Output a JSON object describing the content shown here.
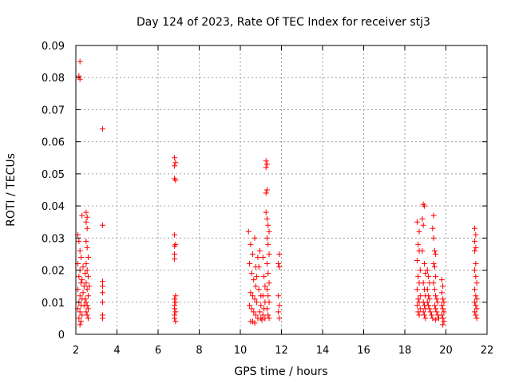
{
  "chart_data": {
    "type": "scatter",
    "title": "Day 124 of 2023, Rate Of TEC Index for receiver stj3",
    "xlabel": "GPS time / hours",
    "ylabel": "ROTI / TECUs",
    "xlim": [
      2,
      22
    ],
    "ylim": [
      0,
      0.09
    ],
    "x_ticks": [
      2,
      4,
      6,
      8,
      10,
      12,
      14,
      16,
      18,
      20,
      22
    ],
    "x_tick_labels": [
      "2",
      "4",
      "6",
      "8",
      "10",
      "12",
      "14",
      "16",
      "18",
      "20",
      "22"
    ],
    "y_ticks": [
      0,
      0.01,
      0.02,
      0.03,
      0.04,
      0.05,
      0.06,
      0.07,
      0.08,
      0.09
    ],
    "y_tick_labels": [
      "0",
      "0.01",
      "0.02",
      "0.03",
      "0.04",
      "0.05",
      "0.06",
      "0.07",
      "0.08",
      "0.09"
    ],
    "grid": true,
    "marker": "+",
    "series": [
      {
        "name": "ROTI",
        "color": "#ff0000",
        "points": [
          [
            2.2,
            0.085
          ],
          [
            2.15,
            0.0805
          ],
          [
            2.2,
            0.0795
          ],
          [
            2.1,
            0.031
          ],
          [
            2.15,
            0.029
          ],
          [
            2.2,
            0.026
          ],
          [
            2.25,
            0.024
          ],
          [
            2.1,
            0.022
          ],
          [
            2.2,
            0.02
          ],
          [
            2.15,
            0.018
          ],
          [
            2.25,
            0.016
          ],
          [
            2.1,
            0.014
          ],
          [
            2.2,
            0.012
          ],
          [
            2.3,
            0.011
          ],
          [
            2.15,
            0.01
          ],
          [
            2.25,
            0.009
          ],
          [
            2.1,
            0.008
          ],
          [
            2.2,
            0.007
          ],
          [
            2.3,
            0.006
          ],
          [
            2.15,
            0.005
          ],
          [
            2.25,
            0.004
          ],
          [
            2.2,
            0.003
          ],
          [
            2.35,
            0.013
          ],
          [
            2.3,
            0.017
          ],
          [
            2.4,
            0.009
          ],
          [
            2.3,
            0.037
          ],
          [
            2.35,
            0.021
          ],
          [
            2.4,
            0.015
          ],
          [
            2.5,
            0.038
          ],
          [
            2.55,
            0.0365
          ],
          [
            2.5,
            0.035
          ],
          [
            2.55,
            0.033
          ],
          [
            2.5,
            0.029
          ],
          [
            2.55,
            0.027
          ],
          [
            2.6,
            0.024
          ],
          [
            2.5,
            0.022
          ],
          [
            2.55,
            0.02
          ],
          [
            2.6,
            0.018
          ],
          [
            2.5,
            0.016
          ],
          [
            2.55,
            0.014
          ],
          [
            2.6,
            0.012
          ],
          [
            2.5,
            0.01
          ],
          [
            2.55,
            0.009
          ],
          [
            2.6,
            0.008
          ],
          [
            2.5,
            0.007
          ],
          [
            2.55,
            0.006
          ],
          [
            2.6,
            0.005
          ],
          [
            2.45,
            0.011
          ],
          [
            2.45,
            0.019
          ],
          [
            2.65,
            0.015
          ],
          [
            3.3,
            0.064
          ],
          [
            3.3,
            0.034
          ],
          [
            3.3,
            0.0165
          ],
          [
            3.3,
            0.015
          ],
          [
            3.3,
            0.013
          ],
          [
            3.3,
            0.01
          ],
          [
            3.3,
            0.006
          ],
          [
            3.3,
            0.005
          ],
          [
            6.8,
            0.055
          ],
          [
            6.85,
            0.0535
          ],
          [
            6.8,
            0.0525
          ],
          [
            6.8,
            0.0485
          ],
          [
            6.85,
            0.048
          ],
          [
            6.8,
            0.031
          ],
          [
            6.85,
            0.028
          ],
          [
            6.8,
            0.0275
          ],
          [
            6.8,
            0.025
          ],
          [
            6.8,
            0.0235
          ],
          [
            6.85,
            0.012
          ],
          [
            6.8,
            0.011
          ],
          [
            6.85,
            0.01
          ],
          [
            6.8,
            0.009
          ],
          [
            6.8,
            0.008
          ],
          [
            6.85,
            0.007
          ],
          [
            6.8,
            0.006
          ],
          [
            6.8,
            0.005
          ],
          [
            6.85,
            0.004
          ],
          [
            10.4,
            0.032
          ],
          [
            10.5,
            0.028
          ],
          [
            10.6,
            0.025
          ],
          [
            10.7,
            0.03
          ],
          [
            10.45,
            0.022
          ],
          [
            10.55,
            0.019
          ],
          [
            10.65,
            0.017
          ],
          [
            10.75,
            0.015
          ],
          [
            10.5,
            0.013
          ],
          [
            10.6,
            0.012
          ],
          [
            10.7,
            0.011
          ],
          [
            10.8,
            0.01
          ],
          [
            10.45,
            0.009
          ],
          [
            10.55,
            0.008
          ],
          [
            10.65,
            0.007
          ],
          [
            10.75,
            0.006
          ],
          [
            10.85,
            0.005
          ],
          [
            10.5,
            0.004
          ],
          [
            10.6,
            0.004
          ],
          [
            10.7,
            0.0035
          ],
          [
            10.9,
            0.021
          ],
          [
            10.95,
            0.026
          ],
          [
            10.8,
            0.018
          ],
          [
            10.9,
            0.014
          ],
          [
            11.0,
            0.012
          ],
          [
            11.0,
            0.009
          ],
          [
            10.95,
            0.007
          ],
          [
            11.0,
            0.005
          ],
          [
            10.85,
            0.024
          ],
          [
            10.75,
            0.021
          ],
          [
            11.1,
            0.024
          ],
          [
            11.15,
            0.018
          ],
          [
            11.2,
            0.015
          ],
          [
            11.1,
            0.012
          ],
          [
            11.2,
            0.01
          ],
          [
            11.15,
            0.008
          ],
          [
            11.1,
            0.006
          ],
          [
            11.2,
            0.005
          ],
          [
            11.05,
            0.0045
          ],
          [
            11.25,
            0.054
          ],
          [
            11.3,
            0.053
          ],
          [
            11.25,
            0.052
          ],
          [
            11.3,
            0.045
          ],
          [
            11.25,
            0.044
          ],
          [
            11.25,
            0.038
          ],
          [
            11.3,
            0.036
          ],
          [
            11.35,
            0.034
          ],
          [
            11.4,
            0.032
          ],
          [
            11.3,
            0.03
          ],
          [
            11.35,
            0.028
          ],
          [
            11.4,
            0.025
          ],
          [
            11.3,
            0.022
          ],
          [
            11.35,
            0.019
          ],
          [
            11.4,
            0.016
          ],
          [
            11.3,
            0.014
          ],
          [
            11.35,
            0.012
          ],
          [
            11.4,
            0.01
          ],
          [
            11.3,
            0.008
          ],
          [
            11.35,
            0.006
          ],
          [
            11.4,
            0.005
          ],
          [
            11.9,
            0.025
          ],
          [
            11.85,
            0.022
          ],
          [
            11.9,
            0.021
          ],
          [
            11.85,
            0.012
          ],
          [
            11.9,
            0.009
          ],
          [
            11.85,
            0.007
          ],
          [
            11.9,
            0.005
          ],
          [
            18.6,
            0.035
          ],
          [
            18.7,
            0.032
          ],
          [
            18.65,
            0.028
          ],
          [
            18.7,
            0.026
          ],
          [
            18.6,
            0.023
          ],
          [
            18.75,
            0.02
          ],
          [
            18.65,
            0.018
          ],
          [
            18.7,
            0.016
          ],
          [
            18.6,
            0.014
          ],
          [
            18.75,
            0.012
          ],
          [
            18.65,
            0.011
          ],
          [
            18.7,
            0.01
          ],
          [
            18.6,
            0.009
          ],
          [
            18.75,
            0.008
          ],
          [
            18.65,
            0.007
          ],
          [
            18.7,
            0.006
          ],
          [
            18.9,
            0.0405
          ],
          [
            18.95,
            0.04
          ],
          [
            18.85,
            0.036
          ],
          [
            18.9,
            0.034
          ],
          [
            18.85,
            0.026
          ],
          [
            18.95,
            0.022
          ],
          [
            19.0,
            0.019
          ],
          [
            18.9,
            0.016
          ],
          [
            18.95,
            0.014
          ],
          [
            19.0,
            0.012
          ],
          [
            18.9,
            0.01
          ],
          [
            18.95,
            0.009
          ],
          [
            19.0,
            0.008
          ],
          [
            18.9,
            0.007
          ],
          [
            18.95,
            0.006
          ],
          [
            19.0,
            0.005
          ],
          [
            19.1,
            0.02
          ],
          [
            19.15,
            0.018
          ],
          [
            19.2,
            0.016
          ],
          [
            19.1,
            0.014
          ],
          [
            19.15,
            0.012
          ],
          [
            19.2,
            0.011
          ],
          [
            19.1,
            0.01
          ],
          [
            19.15,
            0.009
          ],
          [
            19.2,
            0.008
          ],
          [
            19.25,
            0.007
          ],
          [
            19.3,
            0.006
          ],
          [
            19.35,
            0.005
          ],
          [
            19.4,
            0.037
          ],
          [
            19.35,
            0.033
          ],
          [
            19.4,
            0.03
          ],
          [
            19.45,
            0.026
          ],
          [
            19.5,
            0.025
          ],
          [
            19.4,
            0.022
          ],
          [
            19.45,
            0.021
          ],
          [
            19.5,
            0.018
          ],
          [
            19.4,
            0.016
          ],
          [
            19.45,
            0.014
          ],
          [
            19.5,
            0.012
          ],
          [
            19.55,
            0.011
          ],
          [
            19.6,
            0.01
          ],
          [
            19.45,
            0.009
          ],
          [
            19.5,
            0.008
          ],
          [
            19.55,
            0.007
          ],
          [
            19.6,
            0.006
          ],
          [
            19.65,
            0.005
          ],
          [
            19.5,
            0.0045
          ],
          [
            19.8,
            0.017
          ],
          [
            19.85,
            0.015
          ],
          [
            19.8,
            0.013
          ],
          [
            19.85,
            0.011
          ],
          [
            19.9,
            0.01
          ],
          [
            19.8,
            0.009
          ],
          [
            19.85,
            0.008
          ],
          [
            19.9,
            0.007
          ],
          [
            19.8,
            0.006
          ],
          [
            19.85,
            0.005
          ],
          [
            19.9,
            0.004
          ],
          [
            19.85,
            0.003
          ],
          [
            21.4,
            0.033
          ],
          [
            21.45,
            0.031
          ],
          [
            21.4,
            0.029
          ],
          [
            21.45,
            0.027
          ],
          [
            21.4,
            0.026
          ],
          [
            21.45,
            0.022
          ],
          [
            21.4,
            0.02
          ],
          [
            21.45,
            0.018
          ],
          [
            21.5,
            0.016
          ],
          [
            21.4,
            0.014
          ],
          [
            21.45,
            0.012
          ],
          [
            21.5,
            0.011
          ],
          [
            21.4,
            0.01
          ],
          [
            21.45,
            0.009
          ],
          [
            21.5,
            0.008
          ],
          [
            21.4,
            0.007
          ],
          [
            21.45,
            0.006
          ],
          [
            21.5,
            0.005
          ]
        ]
      }
    ]
  }
}
